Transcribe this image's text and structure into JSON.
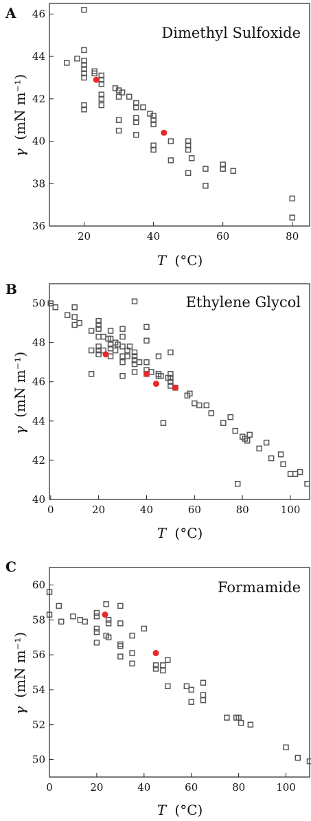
{
  "colors": {
    "measured": "#555555",
    "highlight": "#e8292b",
    "axis": "#222222"
  },
  "chart_data": [
    {
      "type": "scatter",
      "panel_label": "A",
      "title": "Dimethyl Sulfoxide",
      "xlabel_var": "T",
      "xlabel_unit": "(°C)",
      "ylabel_var": "γ",
      "ylabel_unit": "(mN m⁻¹)",
      "xlim": [
        10,
        85
      ],
      "ylim": [
        36,
        46.5
      ],
      "xticks": [
        20,
        40,
        60,
        80
      ],
      "yticks": [
        36,
        38,
        40,
        42,
        44,
        46
      ],
      "series": [
        {
          "marker": "open-square",
          "x": [
            15,
            18,
            20,
            20,
            20,
            20,
            20,
            20,
            20,
            20,
            20,
            23,
            23,
            25,
            25,
            25,
            25,
            25,
            25,
            29,
            30,
            30,
            30,
            30,
            31,
            33,
            35,
            35,
            35,
            35,
            35,
            37,
            39,
            40,
            40,
            40,
            40,
            40,
            45,
            45,
            50,
            50,
            50,
            50,
            51,
            55,
            55,
            60,
            60,
            63,
            80,
            80
          ],
          "y": [
            43.7,
            43.9,
            46.2,
            44.3,
            43.6,
            43.4,
            43.2,
            43.0,
            41.7,
            41.5,
            43.8,
            43.3,
            43.2,
            43.1,
            42.7,
            42.2,
            42.0,
            41.7,
            42.9,
            42.5,
            42.4,
            42.1,
            41.0,
            40.5,
            42.3,
            42.1,
            41.8,
            41.6,
            41.1,
            40.9,
            40.3,
            41.6,
            41.3,
            41.2,
            41.0,
            40.8,
            39.8,
            39.6,
            40.0,
            39.1,
            40.0,
            39.8,
            39.6,
            38.5,
            39.2,
            38.7,
            37.9,
            38.9,
            38.7,
            38.6,
            37.3,
            36.4
          ]
        },
        {
          "marker": "filled-circle",
          "x": [
            23.5,
            43
          ],
          "y": [
            42.9,
            40.4
          ]
        }
      ]
    },
    {
      "type": "scatter",
      "panel_label": "B",
      "title": "Ethylene Glycol",
      "xlabel_var": "T",
      "xlabel_unit": "(°C)",
      "ylabel_var": "γ",
      "ylabel_unit": "(mN m⁻¹)",
      "xlim": [
        -0.5,
        108
      ],
      "ylim": [
        40,
        51
      ],
      "xticks": [
        0,
        20,
        40,
        60,
        80,
        100
      ],
      "yticks": [
        40,
        42,
        44,
        46,
        48,
        50
      ],
      "series": [
        {
          "marker": "open-square",
          "x": [
            0,
            2,
            7,
            10,
            10,
            10,
            12,
            17,
            17,
            17,
            20,
            20,
            20,
            20,
            20,
            20,
            20,
            22,
            22,
            24,
            25,
            25,
            25,
            25,
            25,
            27,
            27,
            28,
            30,
            30,
            30,
            30,
            30,
            30,
            32,
            32,
            33,
            35,
            35,
            35,
            35,
            35,
            35,
            37,
            40,
            40,
            40,
            40,
            40,
            42,
            45,
            45,
            45,
            46,
            47,
            49,
            50,
            50,
            50,
            50,
            50,
            52,
            57,
            58,
            60,
            62,
            65,
            67,
            72,
            75,
            77,
            78,
            80,
            81,
            82,
            83,
            87,
            90,
            92,
            96,
            97,
            100,
            102,
            104,
            107
          ],
          "y": [
            50.0,
            49.8,
            49.4,
            49.8,
            49.3,
            48.9,
            49.0,
            48.6,
            47.6,
            46.4,
            49.1,
            48.9,
            48.7,
            48.3,
            47.8,
            47.6,
            47.4,
            48.3,
            47.6,
            48.2,
            48.6,
            48.2,
            47.9,
            47.7,
            47.3,
            48.0,
            47.6,
            47.9,
            48.7,
            48.3,
            47.8,
            47.3,
            47.0,
            46.3,
            47.6,
            47.3,
            47.8,
            50.1,
            47.5,
            47.3,
            47.1,
            46.9,
            46.5,
            47.0,
            48.8,
            48.1,
            47.0,
            46.6,
            46.4,
            46.5,
            47.3,
            46.4,
            46.3,
            46.3,
            43.9,
            46.2,
            47.5,
            46.4,
            46.2,
            46.0,
            45.8,
            45.7,
            45.3,
            45.4,
            44.9,
            44.8,
            44.8,
            44.4,
            43.9,
            44.2,
            43.5,
            40.8,
            43.2,
            43.1,
            43.0,
            43.3,
            42.6,
            42.9,
            42.1,
            42.3,
            41.8,
            41.3,
            41.3,
            41.4,
            40.8
          ]
        },
        {
          "marker": "filled-circle",
          "x": [
            23,
            40,
            44,
            52
          ],
          "y": [
            47.4,
            46.4,
            45.9,
            45.7
          ]
        }
      ]
    },
    {
      "type": "scatter",
      "panel_label": "C",
      "title": "Formamide",
      "xlabel_var": "T",
      "xlabel_unit": "(°C)",
      "ylabel_var": "γ",
      "ylabel_unit": "(mN m⁻¹)",
      "xlim": [
        0,
        110
      ],
      "ylim": [
        49,
        61
      ],
      "xticks": [
        0,
        20,
        40,
        60,
        80,
        100
      ],
      "yticks": [
        50,
        52,
        54,
        56,
        58,
        60
      ],
      "series": [
        {
          "marker": "open-square",
          "x": [
            0,
            0,
            4,
            5,
            10,
            13,
            15,
            20,
            20,
            20,
            20,
            20,
            24,
            24,
            25,
            25,
            25,
            30,
            30,
            30,
            30,
            30,
            35,
            35,
            35,
            40,
            45,
            45,
            48,
            48,
            50,
            50,
            58,
            60,
            60,
            65,
            65,
            65,
            75,
            79,
            80,
            81,
            85,
            100,
            105,
            110
          ],
          "y": [
            59.6,
            58.3,
            58.8,
            57.9,
            58.2,
            58.0,
            57.9,
            58.4,
            58.2,
            57.5,
            57.3,
            56.7,
            58.9,
            57.1,
            58.0,
            57.8,
            57.0,
            58.8,
            57.8,
            56.6,
            56.5,
            55.9,
            57.1,
            56.1,
            55.5,
            57.5,
            55.4,
            55.2,
            55.4,
            55.1,
            55.7,
            54.2,
            54.2,
            54.0,
            53.3,
            54.4,
            53.7,
            53.4,
            52.4,
            52.4,
            52.4,
            52.1,
            52.0,
            50.7,
            50.1,
            49.9
          ]
        },
        {
          "marker": "filled-circle",
          "x": [
            23.5,
            45
          ],
          "y": [
            58.3,
            56.1
          ]
        }
      ]
    }
  ]
}
